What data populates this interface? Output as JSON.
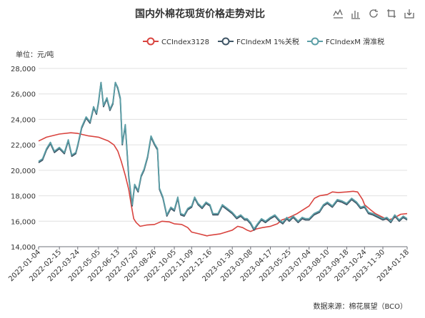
{
  "chart_data": {
    "type": "line",
    "title": "国内外棉花现货价格走势对比",
    "unit_label": "单位：元/吨",
    "source": "数据来源：棉花展望（BCO）",
    "ylim": [
      14000,
      28000
    ],
    "y_ticks": [
      14000,
      16000,
      18000,
      20000,
      22000,
      24000,
      26000,
      28000
    ],
    "y_tick_labels": [
      "14,000",
      "16,000",
      "18,000",
      "20,000",
      "22,000",
      "24,000",
      "26,000",
      "28,000"
    ],
    "xlim": [
      "2022-01-04",
      "2024-01-18"
    ],
    "x_tick_labels": [
      "2022-01-04",
      "2022-02-15",
      "2022-03-24",
      "2022-05-05",
      "2022-06-13",
      "2022-07-20",
      "2022-08-26",
      "2022-10-05",
      "2022-11-09",
      "2022-12-16",
      "2023-01-30",
      "2023-03-08",
      "2023-04-17",
      "2023-05-25",
      "2023-07-04",
      "2023-08-10",
      "2023-09-18",
      "2023-10-24",
      "2023-11-30",
      "2024-01-18"
    ],
    "grid": "horizontal",
    "legend": "top-right",
    "series": [
      {
        "name": "CCIndex3128",
        "color": "#d9443f",
        "points": [
          [
            "2022-01-04",
            22300
          ],
          [
            "2022-01-20",
            22600
          ],
          [
            "2022-02-15",
            22850
          ],
          [
            "2022-03-10",
            22950
          ],
          [
            "2022-03-24",
            22900
          ],
          [
            "2022-04-15",
            22700
          ],
          [
            "2022-05-05",
            22600
          ],
          [
            "2022-05-25",
            22300
          ],
          [
            "2022-06-05",
            22000
          ],
          [
            "2022-06-13",
            21500
          ],
          [
            "2022-06-20",
            20700
          ],
          [
            "2022-06-28",
            19600
          ],
          [
            "2022-07-05",
            18500
          ],
          [
            "2022-07-10",
            17300
          ],
          [
            "2022-07-15",
            16200
          ],
          [
            "2022-07-20",
            15900
          ],
          [
            "2022-07-28",
            15600
          ],
          [
            "2022-08-10",
            15700
          ],
          [
            "2022-08-26",
            15750
          ],
          [
            "2022-09-10",
            16000
          ],
          [
            "2022-09-25",
            15950
          ],
          [
            "2022-10-05",
            15800
          ],
          [
            "2022-10-20",
            15750
          ],
          [
            "2022-11-01",
            15500
          ],
          [
            "2022-11-09",
            15150
          ],
          [
            "2022-11-25",
            15000
          ],
          [
            "2022-12-10",
            14850
          ],
          [
            "2022-12-16",
            14900
          ],
          [
            "2023-01-05",
            15000
          ],
          [
            "2023-01-30",
            15300
          ],
          [
            "2023-02-10",
            15600
          ],
          [
            "2023-02-20",
            15500
          ],
          [
            "2023-03-01",
            15300
          ],
          [
            "2023-03-08",
            15200
          ],
          [
            "2023-03-20",
            15400
          ],
          [
            "2023-04-01",
            15500
          ],
          [
            "2023-04-17",
            15600
          ],
          [
            "2023-05-01",
            15800
          ],
          [
            "2023-05-10",
            16100
          ],
          [
            "2023-05-25",
            16300
          ],
          [
            "2023-06-10",
            16600
          ],
          [
            "2023-06-20",
            16850
          ],
          [
            "2023-07-04",
            17200
          ],
          [
            "2023-07-15",
            17800
          ],
          [
            "2023-07-25",
            18000
          ],
          [
            "2023-08-10",
            18100
          ],
          [
            "2023-08-20",
            18300
          ],
          [
            "2023-09-01",
            18250
          ],
          [
            "2023-09-18",
            18300
          ],
          [
            "2023-10-01",
            18350
          ],
          [
            "2023-10-10",
            18300
          ],
          [
            "2023-10-20",
            17700
          ],
          [
            "2023-10-24",
            17300
          ],
          [
            "2023-11-05",
            16900
          ],
          [
            "2023-11-15",
            16600
          ],
          [
            "2023-11-30",
            16300
          ],
          [
            "2023-12-10",
            16100
          ],
          [
            "2023-12-20",
            16200
          ],
          [
            "2024-01-05",
            16550
          ],
          [
            "2024-01-18",
            16600
          ]
        ]
      },
      {
        "name": "FCIndexM 1%关税",
        "color": "#3f5566",
        "points": [
          [
            "2022-01-04",
            20600
          ],
          [
            "2022-01-12",
            20800
          ],
          [
            "2022-01-20",
            21600
          ],
          [
            "2022-01-28",
            22100
          ],
          [
            "2022-02-05",
            21400
          ],
          [
            "2022-02-15",
            21700
          ],
          [
            "2022-02-25",
            21300
          ],
          [
            "2022-03-05",
            22300
          ],
          [
            "2022-03-12",
            21100
          ],
          [
            "2022-03-20",
            21300
          ],
          [
            "2022-03-24",
            21900
          ],
          [
            "2022-04-01",
            23300
          ],
          [
            "2022-04-10",
            24100
          ],
          [
            "2022-04-18",
            23700
          ],
          [
            "2022-04-25",
            24900
          ],
          [
            "2022-05-01",
            24400
          ],
          [
            "2022-05-05",
            25300
          ],
          [
            "2022-05-10",
            26900
          ],
          [
            "2022-05-15",
            25000
          ],
          [
            "2022-05-22",
            25600
          ],
          [
            "2022-05-28",
            24700
          ],
          [
            "2022-06-03",
            25200
          ],
          [
            "2022-06-08",
            26900
          ],
          [
            "2022-06-13",
            26400
          ],
          [
            "2022-06-18",
            25600
          ],
          [
            "2022-06-22",
            22000
          ],
          [
            "2022-06-28",
            23500
          ],
          [
            "2022-07-05",
            19500
          ],
          [
            "2022-07-12",
            17200
          ],
          [
            "2022-07-17",
            18800
          ],
          [
            "2022-07-24",
            18300
          ],
          [
            "2022-07-30",
            19500
          ],
          [
            "2022-08-05",
            20000
          ],
          [
            "2022-08-12",
            21000
          ],
          [
            "2022-08-19",
            22600
          ],
          [
            "2022-08-26",
            22000
          ],
          [
            "2022-09-01",
            21600
          ],
          [
            "2022-09-05",
            18500
          ],
          [
            "2022-09-12",
            17800
          ],
          [
            "2022-09-20",
            16400
          ],
          [
            "2022-09-28",
            17000
          ],
          [
            "2022-10-05",
            16800
          ],
          [
            "2022-10-12",
            17800
          ],
          [
            "2022-10-18",
            16500
          ],
          [
            "2022-10-25",
            16400
          ],
          [
            "2022-11-01",
            16900
          ],
          [
            "2022-11-09",
            17100
          ],
          [
            "2022-11-15",
            17800
          ],
          [
            "2022-11-22",
            17300
          ],
          [
            "2022-11-30",
            17000
          ],
          [
            "2022-12-08",
            17400
          ],
          [
            "2022-12-16",
            17200
          ],
          [
            "2022-12-22",
            16500
          ],
          [
            "2023-01-01",
            16500
          ],
          [
            "2023-01-10",
            17200
          ],
          [
            "2023-01-20",
            16900
          ],
          [
            "2023-01-30",
            16600
          ],
          [
            "2023-02-08",
            16200
          ],
          [
            "2023-02-16",
            16400
          ],
          [
            "2023-02-24",
            16100
          ],
          [
            "2023-03-01",
            16100
          ],
          [
            "2023-03-08",
            15800
          ],
          [
            "2023-03-15",
            15300
          ],
          [
            "2023-03-22",
            15700
          ],
          [
            "2023-03-30",
            16100
          ],
          [
            "2023-04-07",
            15900
          ],
          [
            "2023-04-17",
            16200
          ],
          [
            "2023-04-26",
            16400
          ],
          [
            "2023-05-05",
            16000
          ],
          [
            "2023-05-12",
            15800
          ],
          [
            "2023-05-20",
            16200
          ],
          [
            "2023-05-25",
            16000
          ],
          [
            "2023-06-02",
            16300
          ],
          [
            "2023-06-12",
            15900
          ],
          [
            "2023-06-20",
            16200
          ],
          [
            "2023-06-27",
            16100
          ],
          [
            "2023-07-04",
            16100
          ],
          [
            "2023-07-14",
            16500
          ],
          [
            "2023-07-25",
            16700
          ],
          [
            "2023-08-02",
            17200
          ],
          [
            "2023-08-10",
            17400
          ],
          [
            "2023-08-20",
            17100
          ],
          [
            "2023-08-30",
            17600
          ],
          [
            "2023-09-08",
            17500
          ],
          [
            "2023-09-18",
            17300
          ],
          [
            "2023-09-28",
            17700
          ],
          [
            "2023-10-08",
            17400
          ],
          [
            "2023-10-16",
            17000
          ],
          [
            "2023-10-24",
            17100
          ],
          [
            "2023-11-01",
            16600
          ],
          [
            "2023-11-10",
            16500
          ],
          [
            "2023-11-20",
            16300
          ],
          [
            "2023-11-30",
            16100
          ],
          [
            "2023-12-08",
            16200
          ],
          [
            "2023-12-16",
            15900
          ],
          [
            "2023-12-24",
            16400
          ],
          [
            "2024-01-02",
            16000
          ],
          [
            "2024-01-10",
            16300
          ],
          [
            "2024-01-18",
            16100
          ]
        ]
      },
      {
        "name": "FCIndexM 滑准税",
        "color": "#5b9ea6",
        "points": [
          [
            "2022-01-04",
            20700
          ],
          [
            "2022-01-12",
            20900
          ],
          [
            "2022-01-20",
            21700
          ],
          [
            "2022-01-28",
            22200
          ],
          [
            "2022-02-05",
            21500
          ],
          [
            "2022-02-15",
            21800
          ],
          [
            "2022-02-25",
            21400
          ],
          [
            "2022-03-05",
            22400
          ],
          [
            "2022-03-12",
            21200
          ],
          [
            "2022-03-20",
            21400
          ],
          [
            "2022-03-24",
            22000
          ],
          [
            "2022-04-01",
            23400
          ],
          [
            "2022-04-10",
            24200
          ],
          [
            "2022-04-18",
            23800
          ],
          [
            "2022-04-25",
            25000
          ],
          [
            "2022-05-01",
            24500
          ],
          [
            "2022-05-05",
            25400
          ],
          [
            "2022-05-10",
            26900
          ],
          [
            "2022-05-15",
            25100
          ],
          [
            "2022-05-22",
            25700
          ],
          [
            "2022-05-28",
            24800
          ],
          [
            "2022-06-03",
            25300
          ],
          [
            "2022-06-08",
            26900
          ],
          [
            "2022-06-13",
            26500
          ],
          [
            "2022-06-18",
            25700
          ],
          [
            "2022-06-22",
            22100
          ],
          [
            "2022-06-28",
            23600
          ],
          [
            "2022-07-05",
            19600
          ],
          [
            "2022-07-12",
            17300
          ],
          [
            "2022-07-17",
            18900
          ],
          [
            "2022-07-24",
            18400
          ],
          [
            "2022-07-30",
            19600
          ],
          [
            "2022-08-05",
            20100
          ],
          [
            "2022-08-12",
            21100
          ],
          [
            "2022-08-19",
            22700
          ],
          [
            "2022-08-26",
            22100
          ],
          [
            "2022-09-01",
            21700
          ],
          [
            "2022-09-05",
            18600
          ],
          [
            "2022-09-12",
            17900
          ],
          [
            "2022-09-20",
            16500
          ],
          [
            "2022-09-28",
            17100
          ],
          [
            "2022-10-05",
            16900
          ],
          [
            "2022-10-12",
            17900
          ],
          [
            "2022-10-18",
            16600
          ],
          [
            "2022-10-25",
            16500
          ],
          [
            "2022-11-01",
            17000
          ],
          [
            "2022-11-09",
            17200
          ],
          [
            "2022-11-15",
            17900
          ],
          [
            "2022-11-22",
            17400
          ],
          [
            "2022-11-30",
            17100
          ],
          [
            "2022-12-08",
            17500
          ],
          [
            "2022-12-16",
            17300
          ],
          [
            "2022-12-22",
            16600
          ],
          [
            "2023-01-01",
            16600
          ],
          [
            "2023-01-10",
            17300
          ],
          [
            "2023-01-20",
            17000
          ],
          [
            "2023-01-30",
            16700
          ],
          [
            "2023-02-08",
            16300
          ],
          [
            "2023-02-16",
            16500
          ],
          [
            "2023-02-24",
            16200
          ],
          [
            "2023-03-01",
            16200
          ],
          [
            "2023-03-08",
            15900
          ],
          [
            "2023-03-15",
            15400
          ],
          [
            "2023-03-22",
            15800
          ],
          [
            "2023-03-30",
            16200
          ],
          [
            "2023-04-07",
            16000
          ],
          [
            "2023-04-17",
            16300
          ],
          [
            "2023-04-26",
            16500
          ],
          [
            "2023-05-05",
            16100
          ],
          [
            "2023-05-12",
            15900
          ],
          [
            "2023-05-20",
            16300
          ],
          [
            "2023-05-25",
            16100
          ],
          [
            "2023-06-02",
            16400
          ],
          [
            "2023-06-12",
            16000
          ],
          [
            "2023-06-20",
            16300
          ],
          [
            "2023-06-27",
            16200
          ],
          [
            "2023-07-04",
            16200
          ],
          [
            "2023-07-14",
            16600
          ],
          [
            "2023-07-25",
            16800
          ],
          [
            "2023-08-02",
            17300
          ],
          [
            "2023-08-10",
            17500
          ],
          [
            "2023-08-20",
            17200
          ],
          [
            "2023-08-30",
            17700
          ],
          [
            "2023-09-08",
            17600
          ],
          [
            "2023-09-18",
            17400
          ],
          [
            "2023-09-28",
            17800
          ],
          [
            "2023-10-08",
            17500
          ],
          [
            "2023-10-16",
            17100
          ],
          [
            "2023-10-24",
            17200
          ],
          [
            "2023-11-01",
            16700
          ],
          [
            "2023-11-10",
            16600
          ],
          [
            "2023-11-20",
            16400
          ],
          [
            "2023-11-30",
            16200
          ],
          [
            "2023-12-08",
            16300
          ],
          [
            "2023-12-16",
            16000
          ],
          [
            "2023-12-24",
            16500
          ],
          [
            "2024-01-02",
            16100
          ],
          [
            "2024-01-10",
            16400
          ],
          [
            "2024-01-18",
            16200
          ]
        ]
      }
    ]
  },
  "toolbox": {
    "icons": [
      "line-chart-icon",
      "bar-chart-icon",
      "refresh-icon",
      "crop-icon",
      "save-icon"
    ]
  }
}
